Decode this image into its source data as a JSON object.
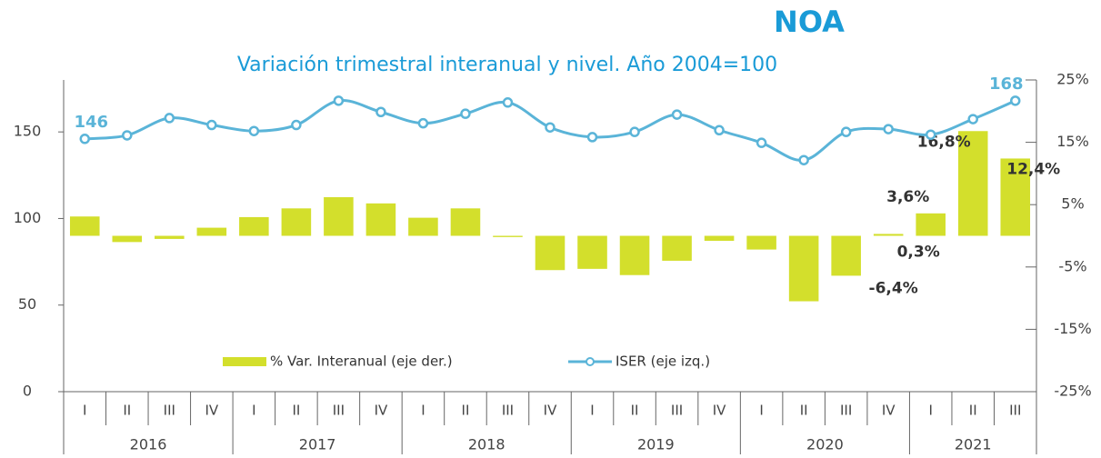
{
  "chart_data": {
    "type": "bar_line",
    "title": "NOA",
    "subtitle": "Variación trimestral interanual y nivel. Año 2004=100",
    "categories": [
      "I",
      "II",
      "III",
      "IV",
      "I",
      "II",
      "III",
      "IV",
      "I",
      "II",
      "III",
      "IV",
      "I",
      "II",
      "III",
      "IV",
      "I",
      "II",
      "III",
      "IV",
      "I",
      "II",
      "III"
    ],
    "year_groups": [
      {
        "label": "2016",
        "count": 4
      },
      {
        "label": "2017",
        "count": 4
      },
      {
        "label": "2018",
        "count": 4
      },
      {
        "label": "2019",
        "count": 4
      },
      {
        "label": "2020",
        "count": 4
      },
      {
        "label": "2021",
        "count": 3
      }
    ],
    "series": [
      {
        "name": "% Var. Interanual (eje der.)",
        "kind": "bar",
        "axis": "y2",
        "color": "#d3df2c",
        "values": [
          3.1,
          -1.0,
          -0.5,
          1.3,
          3.0,
          4.4,
          6.2,
          5.2,
          2.9,
          4.4,
          -0.2,
          -5.5,
          -5.3,
          -6.3,
          -4.0,
          -0.8,
          -2.2,
          -10.5,
          -6.4,
          0.3,
          3.6,
          16.8,
          12.4
        ],
        "value_labels": [
          null,
          null,
          null,
          null,
          null,
          null,
          null,
          null,
          null,
          null,
          null,
          null,
          null,
          null,
          null,
          null,
          null,
          null,
          "-6,4%",
          "0,3%",
          "3,6%",
          "16,8%",
          "12,4%"
        ]
      },
      {
        "name": "ISER (eje izq.)",
        "kind": "line",
        "axis": "y",
        "color": "#5ab4d8",
        "values": [
          146,
          148,
          158,
          154,
          150.5,
          154,
          168,
          161.5,
          155,
          160.5,
          167,
          152.6,
          147,
          150,
          160,
          151,
          143.7,
          133.7,
          150,
          151.6,
          148.4,
          157.4,
          168
        ],
        "value_labels": [
          "146",
          null,
          null,
          null,
          null,
          null,
          null,
          null,
          null,
          null,
          null,
          null,
          null,
          null,
          null,
          null,
          null,
          null,
          null,
          null,
          null,
          null,
          "168"
        ]
      }
    ],
    "ylim": [
      0,
      180
    ],
    "yticks": [
      0,
      50,
      100,
      150
    ],
    "y2lim": [
      -25,
      25
    ],
    "y2ticks": [
      {
        "value": -25,
        "label": "-25%"
      },
      {
        "value": -15,
        "label": "-15%"
      },
      {
        "value": -5,
        "label": "-5%"
      },
      {
        "value": 5,
        "label": "5%"
      },
      {
        "value": 15,
        "label": "15%"
      },
      {
        "value": 25,
        "label": "25%"
      }
    ]
  }
}
